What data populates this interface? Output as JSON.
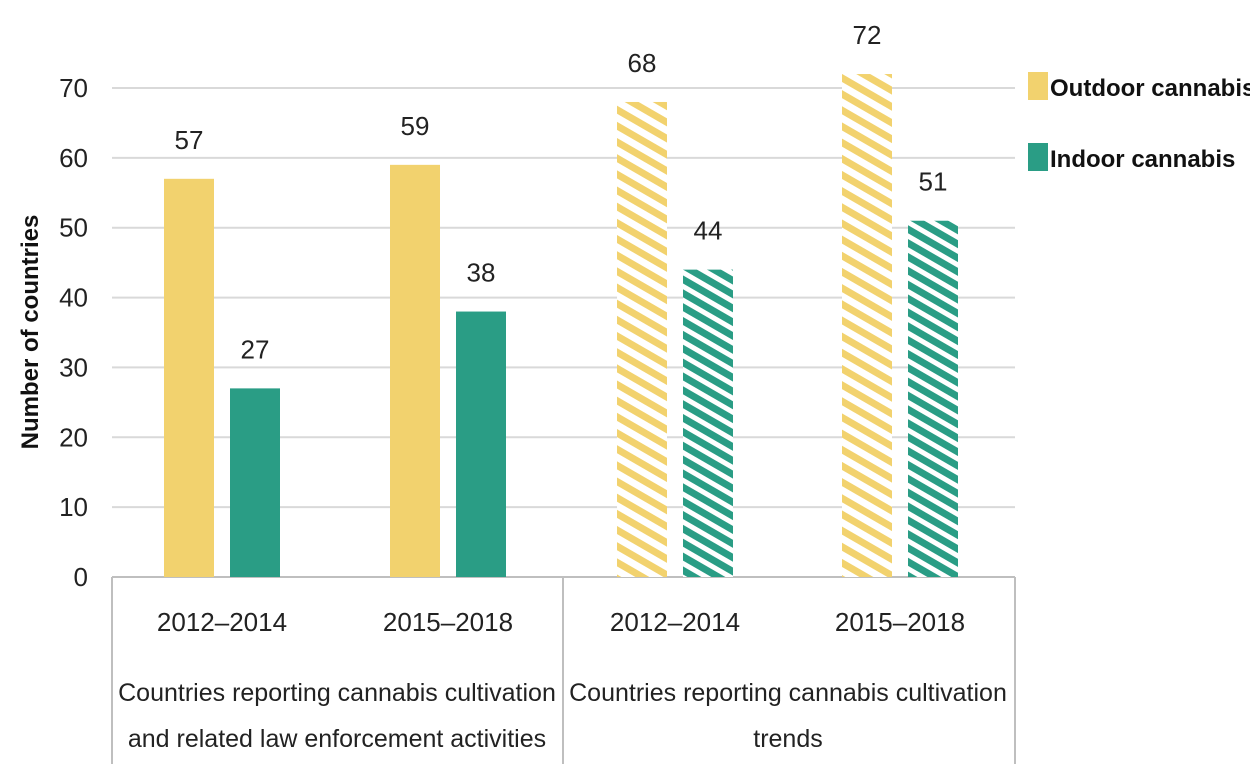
{
  "chart_data": {
    "type": "bar",
    "ylabel": "Number of countries",
    "ylim": [
      0,
      70
    ],
    "yticks": [
      0,
      10,
      20,
      30,
      40,
      50,
      60,
      70
    ],
    "grid": true,
    "legend_position": "top-right",
    "groups": [
      {
        "label_lines": [
          "Countries reporting cannabis cultivation",
          "and related law enforcement activities"
        ],
        "categories": [
          "2012–2014",
          "2015–2018"
        ],
        "hatched": false
      },
      {
        "label_lines": [
          "Countries reporting cannabis cultivation",
          "trends"
        ],
        "categories": [
          "2012–2014",
          "2015–2018"
        ],
        "hatched": true
      }
    ],
    "series": [
      {
        "name": "Outdoor cannabis",
        "color": "#F2D26E",
        "values": [
          57,
          59,
          68,
          72
        ]
      },
      {
        "name": "Indoor cannabis",
        "color": "#2A9D85",
        "values": [
          27,
          38,
          44,
          51
        ]
      }
    ]
  }
}
